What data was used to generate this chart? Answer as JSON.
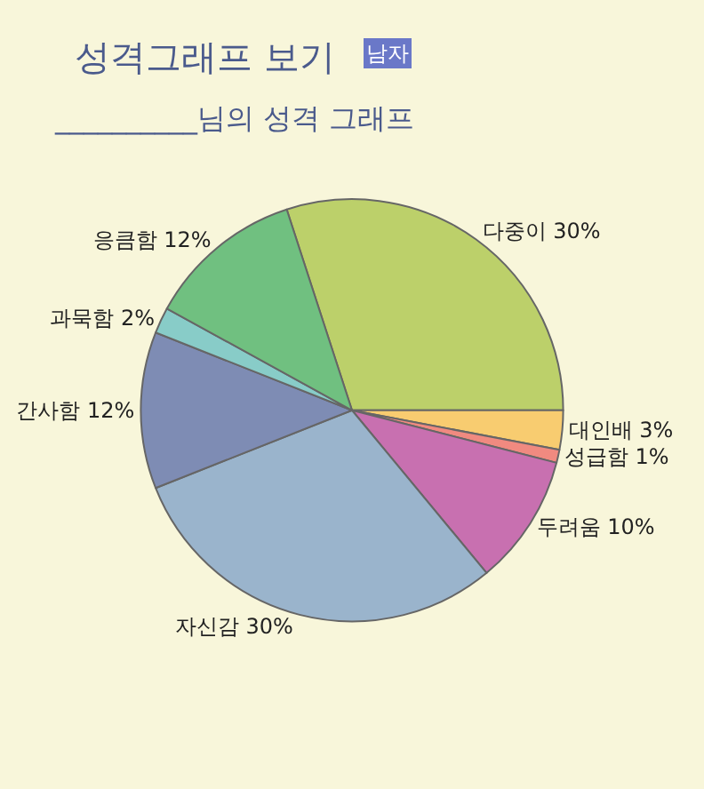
{
  "chart_data": {
    "type": "pie",
    "title": "성격그래프 보기",
    "subtitle": "__________님의 성격 그래프",
    "annotations": [
      "남자"
    ],
    "categories": [
      "다중이",
      "대인배",
      "성급함",
      "두려움",
      "자신감",
      "간사함",
      "과묵함",
      "응큼함"
    ],
    "values": [
      30,
      3,
      1,
      10,
      30,
      12,
      2,
      12
    ],
    "value_labels": [
      "30%",
      "3%",
      "1%",
      "10%",
      "30%",
      "12%",
      "2%",
      "12%"
    ],
    "colors": [
      "#bcd06a",
      "#f8cc70",
      "#f08a80",
      "#c870b0",
      "#9ab4cc",
      "#7e8cb4",
      "#88ccc8",
      "#70c080"
    ],
    "legend": false
  }
}
